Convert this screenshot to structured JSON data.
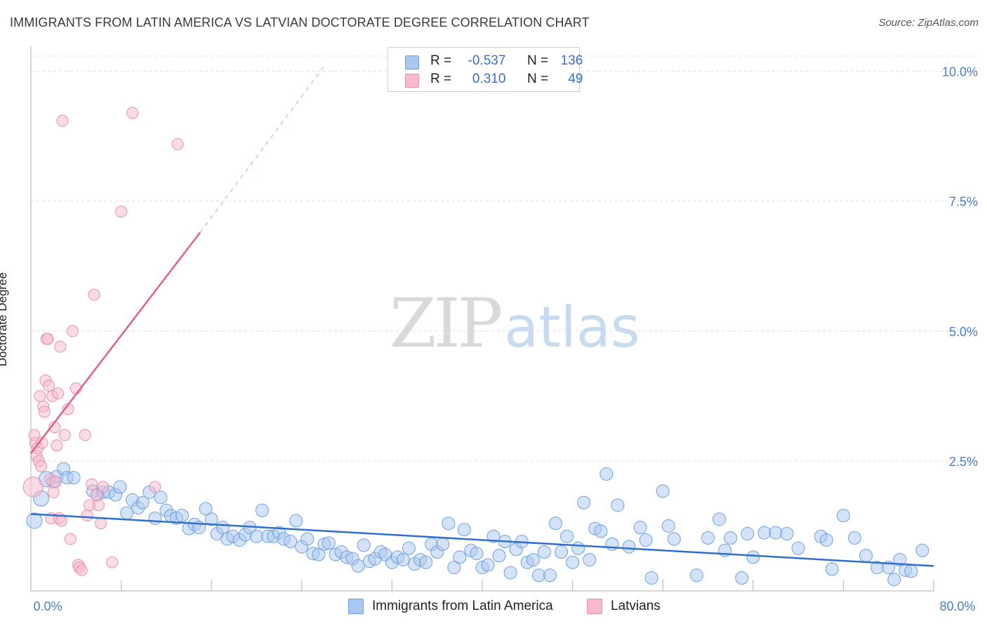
{
  "title": "IMMIGRANTS FROM LATIN AMERICA VS LATVIAN DOCTORATE DEGREE CORRELATION CHART",
  "source": "Source: ZipAtlas.com",
  "watermark": {
    "zip": "ZIP",
    "atlas": "atlas"
  },
  "legend": {
    "r_label": "R =",
    "n_label": "N =",
    "rows": [
      {
        "r": "-0.537",
        "n": "136",
        "color": "#a9c8f0"
      },
      {
        "r": "0.310",
        "n": "49",
        "color": "#f7b9cb"
      }
    ]
  },
  "chart_data": {
    "type": "scatter",
    "title": "IMMIGRANTS FROM LATIN AMERICA VS LATVIAN DOCTORATE DEGREE CORRELATION CHART",
    "xlabel": "",
    "ylabel": "Doctorate Degree",
    "xlim": [
      0,
      80
    ],
    "ylim": [
      0,
      10.4
    ],
    "x_tick_labels": [
      "0.0%",
      "80.0%"
    ],
    "y_ticks": [
      2.5,
      5.0,
      7.5,
      10.0
    ],
    "y_tick_labels": [
      "2.5%",
      "5.0%",
      "7.5%",
      "10.0%"
    ],
    "grid": true,
    "colors": {
      "blue_fill": "#a9c8f0",
      "blue_stroke": "#6f9fde",
      "blue_line": "#2f6fcf",
      "pink_fill": "#f7b9cb",
      "pink_stroke": "#ea8fac",
      "pink_line": "#e0608a"
    },
    "series": [
      {
        "name": "Immigrants from Latin America",
        "r": -0.537,
        "n": 136,
        "trend": {
          "x0": 0,
          "y0": 1.48,
          "x1": 80,
          "y1": 0.48
        },
        "points": [
          [
            0.3,
            1.35
          ],
          [
            0.9,
            1.78
          ],
          [
            1.4,
            2.15
          ],
          [
            2.0,
            2.1
          ],
          [
            2.3,
            2.2
          ],
          [
            2.9,
            2.35
          ],
          [
            3.2,
            2.18
          ],
          [
            3.8,
            2.18
          ],
          [
            5.5,
            1.92
          ],
          [
            5.9,
            1.85
          ],
          [
            6.4,
            1.9
          ],
          [
            6.9,
            1.9
          ],
          [
            7.5,
            1.85
          ],
          [
            7.9,
            2.0
          ],
          [
            8.5,
            1.5
          ],
          [
            9.0,
            1.75
          ],
          [
            9.5,
            1.6
          ],
          [
            9.9,
            1.7
          ],
          [
            10.5,
            1.9
          ],
          [
            11.0,
            1.4
          ],
          [
            11.5,
            1.8
          ],
          [
            12.0,
            1.55
          ],
          [
            12.4,
            1.45
          ],
          [
            12.9,
            1.4
          ],
          [
            13.4,
            1.45
          ],
          [
            14.0,
            1.2
          ],
          [
            14.5,
            1.28
          ],
          [
            14.9,
            1.22
          ],
          [
            15.5,
            1.58
          ],
          [
            16.0,
            1.38
          ],
          [
            16.5,
            1.1
          ],
          [
            17.0,
            1.22
          ],
          [
            17.4,
            1.0
          ],
          [
            17.9,
            1.05
          ],
          [
            18.5,
            0.98
          ],
          [
            19.0,
            1.08
          ],
          [
            19.4,
            1.22
          ],
          [
            20.0,
            1.05
          ],
          [
            20.5,
            1.55
          ],
          [
            21.0,
            1.05
          ],
          [
            21.5,
            1.05
          ],
          [
            22.0,
            1.12
          ],
          [
            22.4,
            1.0
          ],
          [
            23.0,
            0.95
          ],
          [
            23.5,
            1.35
          ],
          [
            24.0,
            0.85
          ],
          [
            24.5,
            1.0
          ],
          [
            25.0,
            0.72
          ],
          [
            25.5,
            0.7
          ],
          [
            26.0,
            0.9
          ],
          [
            26.4,
            0.92
          ],
          [
            27.0,
            0.7
          ],
          [
            27.5,
            0.75
          ],
          [
            28.0,
            0.65
          ],
          [
            28.5,
            0.62
          ],
          [
            29.0,
            0.48
          ],
          [
            29.5,
            0.88
          ],
          [
            30.0,
            0.57
          ],
          [
            30.5,
            0.62
          ],
          [
            31.0,
            0.75
          ],
          [
            31.4,
            0.7
          ],
          [
            32.0,
            0.55
          ],
          [
            32.5,
            0.65
          ],
          [
            33.0,
            0.6
          ],
          [
            33.5,
            0.82
          ],
          [
            34.0,
            0.52
          ],
          [
            34.5,
            0.6
          ],
          [
            35.0,
            0.55
          ],
          [
            35.5,
            0.9
          ],
          [
            36.0,
            0.75
          ],
          [
            36.5,
            0.9
          ],
          [
            37.0,
            1.3
          ],
          [
            37.5,
            0.45
          ],
          [
            38.0,
            0.65
          ],
          [
            38.4,
            1.18
          ],
          [
            39.0,
            0.78
          ],
          [
            39.5,
            0.72
          ],
          [
            40.0,
            0.45
          ],
          [
            40.5,
            0.5
          ],
          [
            41.0,
            1.05
          ],
          [
            41.5,
            0.68
          ],
          [
            42.0,
            0.95
          ],
          [
            42.5,
            0.35
          ],
          [
            43.0,
            0.8
          ],
          [
            43.5,
            0.95
          ],
          [
            44.0,
            0.55
          ],
          [
            44.5,
            0.6
          ],
          [
            45.0,
            0.3
          ],
          [
            45.5,
            0.75
          ],
          [
            46.0,
            0.3
          ],
          [
            46.5,
            1.3
          ],
          [
            47.0,
            0.75
          ],
          [
            47.5,
            1.05
          ],
          [
            48.0,
            0.55
          ],
          [
            48.5,
            0.82
          ],
          [
            49.0,
            1.7
          ],
          [
            49.5,
            0.6
          ],
          [
            50.0,
            1.2
          ],
          [
            50.5,
            1.15
          ],
          [
            51.0,
            2.25
          ],
          [
            51.5,
            0.9
          ],
          [
            52.0,
            1.65
          ],
          [
            53.0,
            0.85
          ],
          [
            54.0,
            1.22
          ],
          [
            54.5,
            0.98
          ],
          [
            55.0,
            0.25
          ],
          [
            56.0,
            1.92
          ],
          [
            56.5,
            1.25
          ],
          [
            57.0,
            1.0
          ],
          [
            59.0,
            0.3
          ],
          [
            60.0,
            1.02
          ],
          [
            61.0,
            1.38
          ],
          [
            61.5,
            0.78
          ],
          [
            62.0,
            1.02
          ],
          [
            63.0,
            0.25
          ],
          [
            63.5,
            1.1
          ],
          [
            64.0,
            0.65
          ],
          [
            65.0,
            1.12
          ],
          [
            66.0,
            1.12
          ],
          [
            67.0,
            1.1
          ],
          [
            68.0,
            0.82
          ],
          [
            70.0,
            1.05
          ],
          [
            70.5,
            0.98
          ],
          [
            71.0,
            0.42
          ],
          [
            72.0,
            1.45
          ],
          [
            73.0,
            1.02
          ],
          [
            74.0,
            0.68
          ],
          [
            75.0,
            0.45
          ],
          [
            76.0,
            0.45
          ],
          [
            76.5,
            0.22
          ],
          [
            77.0,
            0.6
          ],
          [
            77.5,
            0.4
          ],
          [
            78.0,
            0.38
          ],
          [
            79.0,
            0.78
          ]
        ]
      },
      {
        "name": "Latvians",
        "r": 0.31,
        "n": 49,
        "trend": {
          "x0": 0,
          "y0": 2.65,
          "x1": 15,
          "y1": 6.9
        },
        "trend_extension": {
          "x1": 26,
          "y1": 10.1
        },
        "points": [
          [
            0.2,
            2.0
          ],
          [
            0.3,
            3.0
          ],
          [
            0.4,
            2.85
          ],
          [
            0.5,
            2.6
          ],
          [
            0.6,
            2.75
          ],
          [
            0.7,
            2.5
          ],
          [
            0.8,
            3.75
          ],
          [
            0.9,
            2.4
          ],
          [
            1.0,
            2.85
          ],
          [
            1.1,
            3.55
          ],
          [
            1.2,
            3.45
          ],
          [
            1.3,
            4.05
          ],
          [
            1.4,
            4.85
          ],
          [
            1.5,
            4.85
          ],
          [
            1.6,
            3.95
          ],
          [
            1.7,
            2.15
          ],
          [
            1.8,
            1.4
          ],
          [
            1.9,
            3.75
          ],
          [
            2.0,
            1.9
          ],
          [
            2.1,
            3.15
          ],
          [
            2.2,
            2.1
          ],
          [
            2.3,
            2.8
          ],
          [
            2.4,
            3.8
          ],
          [
            2.5,
            1.4
          ],
          [
            2.6,
            4.7
          ],
          [
            2.7,
            1.35
          ],
          [
            2.8,
            9.05
          ],
          [
            3.0,
            3.0
          ],
          [
            3.3,
            3.5
          ],
          [
            3.5,
            1.0
          ],
          [
            3.7,
            5.0
          ],
          [
            4.0,
            3.9
          ],
          [
            4.2,
            0.5
          ],
          [
            4.3,
            0.45
          ],
          [
            4.5,
            0.4
          ],
          [
            4.8,
            3.0
          ],
          [
            5.0,
            1.45
          ],
          [
            5.2,
            1.65
          ],
          [
            5.4,
            2.05
          ],
          [
            5.6,
            5.7
          ],
          [
            5.8,
            1.85
          ],
          [
            6.0,
            1.65
          ],
          [
            6.2,
            1.3
          ],
          [
            6.4,
            2.0
          ],
          [
            7.2,
            0.55
          ],
          [
            8.0,
            7.3
          ],
          [
            9.0,
            9.2
          ],
          [
            11.0,
            2.0
          ],
          [
            13.0,
            8.6
          ]
        ]
      }
    ]
  },
  "bottom_legend": [
    {
      "label": "Immigrants from Latin America",
      "color": "#a9c8f0"
    },
    {
      "label": "Latvians",
      "color": "#f7b9cb"
    }
  ]
}
